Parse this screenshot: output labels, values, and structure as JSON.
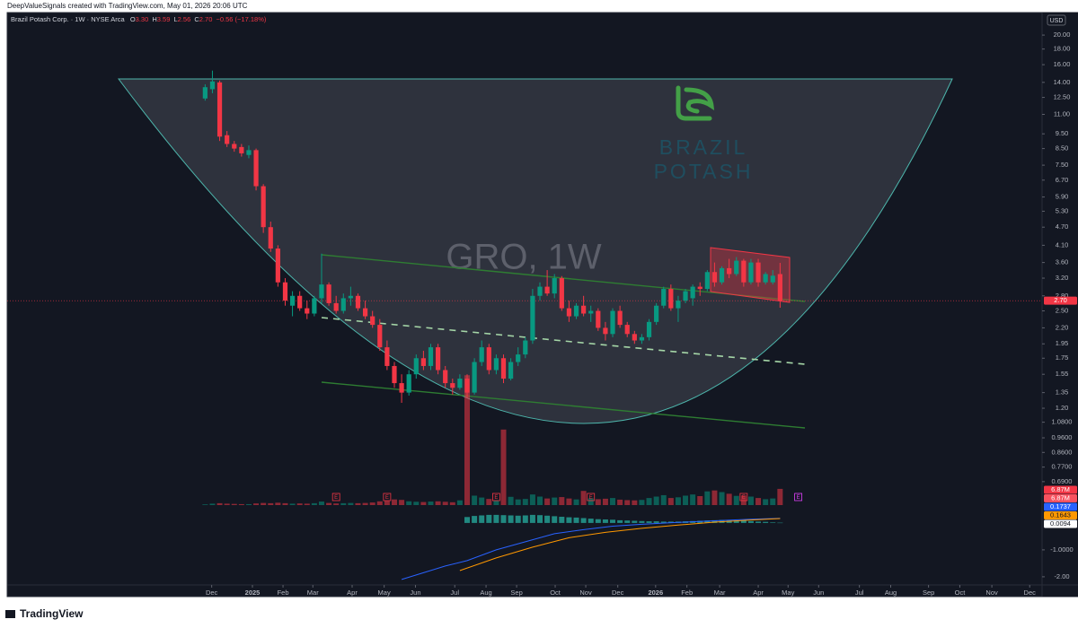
{
  "header": {
    "credit": "DeepValueSignals created with TradingView.com, May 01, 2026 20:06 UTC",
    "symbol": "Brazil Potash Corp. · 1W · NYSE Arca",
    "ohlc": [
      {
        "key": "O",
        "value": "3.30"
      },
      {
        "key": "H",
        "value": "3.59"
      },
      {
        "key": "L",
        "value": "2.56"
      },
      {
        "key": "C",
        "value": "2.70"
      }
    ],
    "change": "−0.56 (−17.18%)"
  },
  "footer": {
    "brand": "TradingView"
  },
  "chart_data": {
    "type": "candlestick",
    "watermark": "GRO, 1W",
    "logo": [
      "BRAZIL",
      "POTASH"
    ],
    "currency": "USD",
    "log_scale": true,
    "grid": false,
    "up_color": "#089981",
    "down_color": "#f23645",
    "ylim": [
      0.59,
      23.7
    ],
    "yticks": [
      {
        "value": 20,
        "label": "20.00"
      },
      {
        "value": 18,
        "label": "18.00"
      },
      {
        "value": 16,
        "label": "16.00"
      },
      {
        "value": 14,
        "label": "14.00"
      },
      {
        "value": 12.5,
        "label": "12.50"
      },
      {
        "value": 11,
        "label": "11.00"
      },
      {
        "value": 9.5,
        "label": "9.50"
      },
      {
        "value": 8.5,
        "label": "8.50"
      },
      {
        "value": 7.5,
        "label": "7.50"
      },
      {
        "value": 6.7,
        "label": "6.70"
      },
      {
        "value": 5.9,
        "label": "5.90"
      },
      {
        "value": 5.3,
        "label": "5.30"
      },
      {
        "value": 4.7,
        "label": "4.70"
      },
      {
        "value": 4.1,
        "label": "4.10"
      },
      {
        "value": 3.6,
        "label": "3.60"
      },
      {
        "value": 3.2,
        "label": "3.20"
      },
      {
        "value": 2.8,
        "label": "2.80"
      },
      {
        "value": 2.5,
        "label": "2.50"
      },
      {
        "value": 2.2,
        "label": "2.20"
      },
      {
        "value": 1.95,
        "label": "1.95"
      },
      {
        "value": 1.75,
        "label": "1.75"
      },
      {
        "value": 1.55,
        "label": "1.55"
      },
      {
        "value": 1.35,
        "label": "1.35"
      },
      {
        "value": 1.2,
        "label": "1.20"
      },
      {
        "value": 1.08,
        "label": "1.0800"
      },
      {
        "value": 0.96,
        "label": "0.9600"
      },
      {
        "value": 0.86,
        "label": "0.8600"
      },
      {
        "value": 0.77,
        "label": "0.7700"
      },
      {
        "value": 0.69,
        "label": "0.6900"
      }
    ],
    "xlim": [
      -27.2,
      115
    ],
    "xticks": [
      {
        "value": 0.9,
        "label": "Dec"
      },
      {
        "value": 6.5,
        "label": "2025"
      },
      {
        "value": 10.7,
        "label": "Feb"
      },
      {
        "value": 14.8,
        "label": "Mar"
      },
      {
        "value": 20.2,
        "label": "Apr"
      },
      {
        "value": 24.6,
        "label": "May"
      },
      {
        "value": 28.9,
        "label": "Jun"
      },
      {
        "value": 34.3,
        "label": "Jul"
      },
      {
        "value": 38.6,
        "label": "Aug"
      },
      {
        "value": 42.8,
        "label": "Sep"
      },
      {
        "value": 48.1,
        "label": "Oct"
      },
      {
        "value": 52.3,
        "label": "Nov"
      },
      {
        "value": 56.7,
        "label": "Dec"
      },
      {
        "value": 61.9,
        "label": "2026"
      },
      {
        "value": 66.2,
        "label": "Feb"
      },
      {
        "value": 70.7,
        "label": "Mar"
      },
      {
        "value": 76,
        "label": "Apr"
      },
      {
        "value": 80.1,
        "label": "May"
      },
      {
        "value": 84.3,
        "label": "Jun"
      },
      {
        "value": 89.9,
        "label": "Jul"
      },
      {
        "value": 94.2,
        "label": "Aug"
      },
      {
        "value": 99.4,
        "label": "Sep"
      },
      {
        "value": 103.7,
        "label": "Oct"
      },
      {
        "value": 108.1,
        "label": "Nov"
      },
      {
        "value": 113.3,
        "label": "Dec"
      }
    ],
    "open": [
      12.4,
      13.3,
      14.0,
      9.4,
      8.8,
      8.6,
      8.1,
      8.4,
      6.4,
      4.7,
      4.0,
      3.1,
      2.6,
      2.8,
      2.55,
      2.45,
      2.75,
      3.05,
      2.65,
      2.5,
      2.75,
      2.8,
      2.55,
      2.4,
      2.25,
      1.9,
      1.65,
      1.45,
      1.35,
      1.55,
      1.75,
      1.65,
      1.9,
      1.6,
      1.45,
      1.4,
      1.5,
      1.35,
      1.7,
      1.9,
      1.6,
      1.75,
      1.5,
      1.7,
      1.8,
      2.0,
      2.8,
      3.0,
      2.85,
      3.2,
      2.55,
      2.4,
      2.6,
      2.45,
      2.5,
      2.2,
      2.1,
      2.5,
      2.25,
      2.1,
      2.0,
      2.05,
      2.3,
      2.6,
      2.95,
      2.55,
      2.7,
      2.75,
      3.0,
      2.95,
      3.35,
      3.1,
      3.45,
      3.3,
      3.65,
      3.1,
      3.6,
      3.1,
      3.1,
      3.3
    ],
    "high": [
      13.8,
      15.3,
      14.2,
      9.7,
      9.0,
      8.8,
      8.7,
      8.5,
      6.5,
      4.9,
      4.1,
      3.2,
      2.9,
      2.9,
      2.7,
      2.8,
      3.85,
      3.1,
      2.8,
      2.85,
      3.0,
      2.85,
      2.7,
      2.5,
      2.35,
      2.0,
      1.7,
      1.55,
      1.6,
      1.8,
      1.85,
      1.95,
      1.95,
      1.65,
      1.5,
      1.55,
      1.55,
      1.75,
      2.0,
      1.95,
      1.8,
      1.8,
      1.75,
      1.9,
      2.05,
      2.95,
      3.1,
      3.4,
      3.3,
      3.25,
      2.7,
      2.65,
      2.8,
      2.6,
      2.55,
      2.3,
      2.55,
      2.6,
      2.3,
      2.15,
      2.1,
      2.35,
      2.65,
      3.0,
      3.05,
      2.8,
      2.95,
      3.05,
      3.1,
      3.4,
      3.6,
      3.5,
      3.7,
      3.75,
      3.7,
      3.7,
      3.7,
      3.35,
      3.4,
      3.59
    ],
    "low": [
      12.2,
      12.9,
      9.0,
      8.6,
      8.3,
      8.0,
      7.9,
      6.2,
      4.5,
      3.9,
      3.0,
      2.6,
      2.4,
      2.5,
      2.35,
      2.4,
      2.65,
      2.6,
      2.45,
      2.45,
      2.6,
      2.5,
      2.35,
      2.2,
      1.85,
      1.6,
      1.4,
      1.25,
      1.32,
      1.5,
      1.6,
      1.6,
      1.55,
      1.4,
      1.33,
      1.38,
      1.3,
      1.33,
      1.65,
      1.55,
      1.55,
      1.45,
      1.48,
      1.65,
      1.75,
      1.95,
      2.7,
      2.8,
      2.75,
      2.5,
      2.3,
      2.35,
      2.4,
      2.3,
      2.15,
      2.0,
      2.05,
      2.2,
      2.05,
      1.95,
      1.95,
      2.0,
      2.25,
      2.55,
      2.5,
      2.3,
      2.65,
      2.6,
      2.8,
      2.9,
      3.0,
      3.05,
      3.2,
      3.25,
      3.0,
      3.05,
      3.0,
      3.05,
      3.05,
      2.56
    ],
    "close": [
      13.5,
      14.1,
      9.3,
      8.8,
      8.5,
      8.2,
      8.4,
      6.4,
      4.7,
      4.0,
      3.1,
      2.7,
      2.8,
      2.55,
      2.45,
      2.75,
      3.05,
      2.65,
      2.5,
      2.75,
      2.8,
      2.55,
      2.4,
      2.25,
      1.9,
      1.65,
      1.45,
      1.35,
      1.55,
      1.75,
      1.65,
      1.9,
      1.6,
      1.45,
      1.4,
      1.5,
      1.35,
      1.7,
      1.9,
      1.6,
      1.75,
      1.5,
      1.7,
      1.8,
      2.0,
      2.8,
      3.0,
      2.85,
      3.2,
      2.55,
      2.4,
      2.6,
      2.45,
      2.5,
      2.2,
      2.1,
      2.5,
      2.25,
      2.1,
      2.0,
      2.05,
      2.3,
      2.6,
      2.95,
      2.55,
      2.7,
      2.9,
      3.0,
      2.95,
      3.35,
      3.1,
      3.45,
      3.3,
      3.65,
      3.1,
      3.6,
      3.1,
      3.3,
      3.26,
      2.7
    ],
    "volume": [
      0.3,
      0.6,
      0.8,
      0.6,
      0.5,
      0.4,
      0.4,
      0.7,
      0.9,
      0.8,
      1.0,
      0.8,
      0.6,
      0.7,
      0.6,
      0.8,
      1.5,
      0.9,
      0.7,
      0.8,
      0.9,
      0.8,
      0.9,
      1.1,
      1.6,
      1.8,
      2.4,
      2.2,
      1.6,
      1.4,
      1.3,
      1.5,
      1.6,
      1.4,
      1.2,
      2.0,
      55,
      4.0,
      3.2,
      2.6,
      2.1,
      32,
      3.5,
      2.4,
      2.6,
      4.5,
      3.6,
      2.8,
      3.2,
      3.4,
      2.8,
      2.4,
      6.0,
      2.9,
      2.5,
      2.7,
      3.0,
      2.3,
      2.1,
      2.0,
      2.2,
      3.0,
      3.6,
      4.2,
      3.0,
      3.3,
      4.0,
      4.5,
      3.8,
      5.8,
      6.2,
      5.5,
      4.8,
      3.9,
      4.1,
      3.6,
      3.0,
      2.5,
      2.8,
      6.87
    ],
    "earnings_marker": "E",
    "earnings": [
      18,
      25,
      40,
      53,
      74
    ],
    "next_earnings": 81.5,
    "price_badge": {
      "value": 2.7,
      "label": "2.70"
    },
    "badges": [
      {
        "label": "6.87M",
        "color": "#f23645",
        "text_color": "#ffffff"
      },
      {
        "label": "6.87M",
        "color": "#f7525f",
        "text_color": "#ffffff"
      },
      {
        "label": "0.1737",
        "color": "#2962ff",
        "text_color": "#ffffff"
      },
      {
        "label": "0.1643",
        "color": "#ff9800",
        "text_color": "#131722"
      },
      {
        "label": "0.0094",
        "color": "#ffffff",
        "text_color": "#131722"
      }
    ],
    "indicator": {
      "ylim": [
        -2.57,
        0.43
      ],
      "yticks": [
        {
          "value": -1,
          "label": "-1.0000"
        },
        {
          "value": -2,
          "label": "-2.00"
        }
      ],
      "histogram_color": "#26a69a",
      "histogram": [
        null,
        null,
        null,
        null,
        null,
        null,
        null,
        null,
        null,
        null,
        null,
        null,
        null,
        null,
        null,
        null,
        null,
        null,
        null,
        null,
        null,
        null,
        null,
        null,
        null,
        null,
        null,
        null,
        null,
        null,
        null,
        null,
        null,
        null,
        null,
        null,
        0.22,
        0.26,
        0.28,
        0.3,
        0.3,
        0.29,
        0.28,
        0.27,
        0.28,
        0.3,
        0.29,
        0.27,
        0.25,
        0.23,
        0.21,
        0.2,
        0.18,
        0.16,
        0.14,
        0.13,
        0.12,
        0.1,
        0.09,
        0.08,
        0.07,
        0.06,
        0.06,
        0.05,
        0.05,
        0.05,
        0.06,
        0.07,
        0.08,
        0.09,
        0.1,
        0.11,
        0.1,
        0.09,
        0.08,
        0.07,
        0.05,
        0.04,
        0.02,
        0.0094
      ],
      "lines": [
        {
          "color": "#2962ff",
          "x": [
            27,
            30,
            33,
            36,
            40,
            44,
            48,
            52,
            56,
            60,
            65,
            70,
            75,
            79
          ],
          "values": [
            -2.1,
            -1.85,
            -1.6,
            -1.4,
            -1.0,
            -0.7,
            -0.4,
            -0.25,
            -0.12,
            -0.05,
            0.02,
            0.08,
            0.14,
            0.1737
          ]
        },
        {
          "color": "#ff9800",
          "x": [
            35,
            40,
            45,
            50,
            55,
            60,
            65,
            70,
            75,
            79
          ],
          "values": [
            -1.77,
            -1.3,
            -0.9,
            -0.55,
            -0.35,
            -0.2,
            -0.08,
            0.03,
            0.11,
            0.1643
          ]
        }
      ]
    }
  }
}
